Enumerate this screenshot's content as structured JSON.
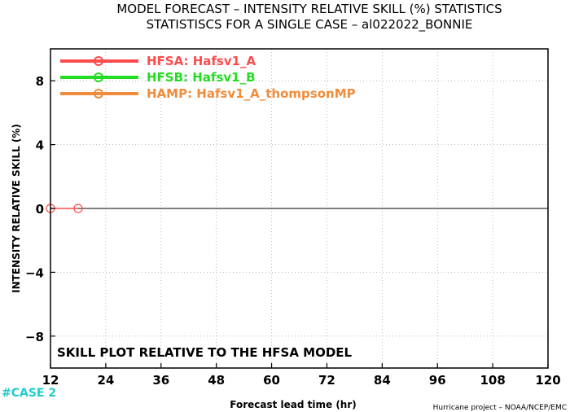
{
  "chart_data": {
    "type": "line",
    "title": "MODEL FORECAST – INTENSITY RELATIVE SKILL (%) STATISTICS",
    "subtitle": "STATISTISCS FOR A SINGLE CASE – al022022_BONNIE",
    "xlabel": "Forecast lead time (hr)",
    "ylabel": "INTENSITY RELATIVE SKILL (%)",
    "xlim": [
      12,
      120
    ],
    "ylim": [
      -10,
      10
    ],
    "x_ticks": [
      12,
      24,
      36,
      48,
      60,
      72,
      84,
      96,
      108,
      120
    ],
    "x_tick_labels": [
      "12",
      "24",
      "36",
      "48",
      "60",
      "72",
      "84",
      "96",
      "108",
      "120"
    ],
    "y_ticks": [
      8,
      4,
      0,
      -4,
      -8
    ],
    "y_tick_labels": [
      "8",
      "4",
      "0",
      "−4",
      "−8"
    ],
    "grid": true,
    "zero_line": true,
    "legend_position": "top-left",
    "series": [
      {
        "name": "HFSA: Hafsv1_A",
        "color": "#ff4b4b",
        "x": [
          12,
          18
        ],
        "values": [
          0,
          0
        ]
      },
      {
        "name": "HFSB: Hafsv1_B",
        "color": "#22dd22",
        "x": [],
        "values": []
      },
      {
        "name": "HAMP: Hafsv1_A_thompsonMP",
        "color": "#f08c3c",
        "x": [],
        "values": []
      }
    ],
    "annotation": "SKILL PLOT RELATIVE TO THE HFSA MODEL"
  },
  "case_label": "#CASE  2",
  "case_color": "#22cccc",
  "credit": "Hurricane project – NOAA/NCEP/EMC"
}
